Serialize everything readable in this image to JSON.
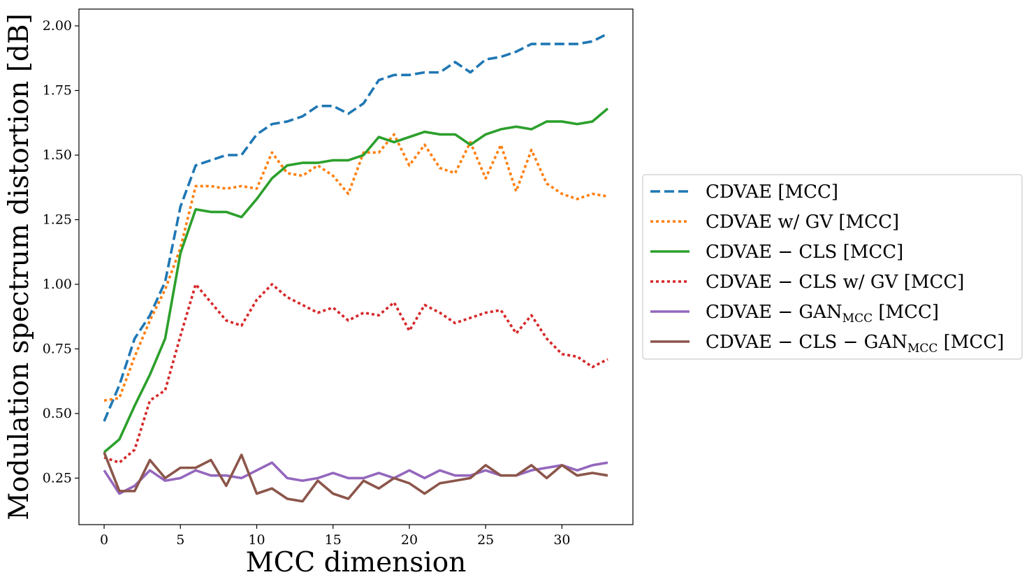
{
  "chart_data": {
    "type": "line",
    "xlabel": "MCC dimension",
    "ylabel": "Modulation spectrum distortion  [dB]",
    "xlim": [
      -1.65,
      34.65
    ],
    "ylim": [
      0.07,
      2.065
    ],
    "xticks": [
      0,
      5,
      10,
      15,
      20,
      25,
      30
    ],
    "yticks": [
      0.25,
      0.5,
      0.75,
      1.0,
      1.25,
      1.5,
      1.75,
      2.0
    ],
    "ytick_labels": [
      "0.25",
      "0.50",
      "0.75",
      "1.00",
      "1.25",
      "1.50",
      "1.75",
      "2.00"
    ],
    "grid": false,
    "legend_position": "outside-right",
    "x": [
      0,
      1,
      2,
      3,
      4,
      5,
      6,
      7,
      8,
      9,
      10,
      11,
      12,
      13,
      14,
      15,
      16,
      17,
      18,
      19,
      20,
      21,
      22,
      23,
      24,
      25,
      26,
      27,
      28,
      29,
      30,
      31,
      32,
      33
    ],
    "series": [
      {
        "name": "CDVAE [MCC]",
        "legend_parts": [
          {
            "text": "CDVAE [MCC]",
            "sub": false
          }
        ],
        "color": "#1f77b4",
        "dash": "dashed",
        "values": [
          0.47,
          0.61,
          0.79,
          0.88,
          1.01,
          1.3,
          1.46,
          1.48,
          1.5,
          1.5,
          1.58,
          1.62,
          1.63,
          1.65,
          1.69,
          1.69,
          1.66,
          1.7,
          1.79,
          1.81,
          1.81,
          1.82,
          1.82,
          1.86,
          1.82,
          1.87,
          1.88,
          1.9,
          1.93,
          1.93,
          1.93,
          1.93,
          1.94,
          1.97
        ]
      },
      {
        "name": "CDVAE w/ GV [MCC]",
        "legend_parts": [
          {
            "text": "CDVAE w/ GV [MCC]",
            "sub": false
          }
        ],
        "color": "#ff7f0e",
        "dash": "dotted",
        "values": [
          0.55,
          0.56,
          0.72,
          0.86,
          0.98,
          1.14,
          1.38,
          1.38,
          1.37,
          1.38,
          1.37,
          1.51,
          1.43,
          1.42,
          1.46,
          1.42,
          1.35,
          1.51,
          1.51,
          1.58,
          1.46,
          1.54,
          1.45,
          1.43,
          1.55,
          1.41,
          1.54,
          1.36,
          1.52,
          1.39,
          1.35,
          1.33,
          1.35,
          1.34
        ]
      },
      {
        "name": "CDVAE − CLS [MCC]",
        "legend_parts": [
          {
            "text": "CDVAE − CLS [MCC]",
            "sub": false
          }
        ],
        "color": "#2ca02c",
        "dash": "solid",
        "values": [
          0.35,
          0.4,
          0.53,
          0.65,
          0.79,
          1.12,
          1.29,
          1.28,
          1.28,
          1.26,
          1.33,
          1.41,
          1.46,
          1.47,
          1.47,
          1.48,
          1.48,
          1.5,
          1.57,
          1.55,
          1.57,
          1.59,
          1.58,
          1.58,
          1.54,
          1.58,
          1.6,
          1.61,
          1.6,
          1.63,
          1.63,
          1.62,
          1.63,
          1.68
        ]
      },
      {
        "name": "CDVAE − CLS w/ GV [MCC]",
        "legend_parts": [
          {
            "text": "CDVAE − CLS w/ GV [MCC]",
            "sub": false
          }
        ],
        "color": "#d62728",
        "dash": "dotted",
        "values": [
          0.33,
          0.31,
          0.36,
          0.55,
          0.59,
          0.8,
          1.0,
          0.93,
          0.86,
          0.84,
          0.94,
          1.0,
          0.95,
          0.92,
          0.89,
          0.91,
          0.86,
          0.89,
          0.88,
          0.93,
          0.82,
          0.92,
          0.89,
          0.85,
          0.87,
          0.89,
          0.9,
          0.81,
          0.88,
          0.79,
          0.73,
          0.72,
          0.68,
          0.71
        ]
      },
      {
        "name": "CDVAE − GAN MCC [MCC]",
        "legend_parts": [
          {
            "text": "CDVAE − GAN",
            "sub": false
          },
          {
            "text": "MCC",
            "sub": true
          },
          {
            "text": " [MCC]",
            "sub": false
          }
        ],
        "color": "#9467bd",
        "dash": "solid",
        "values": [
          0.28,
          0.19,
          0.22,
          0.28,
          0.24,
          0.25,
          0.28,
          0.26,
          0.26,
          0.25,
          0.28,
          0.31,
          0.25,
          0.24,
          0.25,
          0.27,
          0.25,
          0.25,
          0.27,
          0.25,
          0.28,
          0.25,
          0.28,
          0.26,
          0.26,
          0.28,
          0.26,
          0.26,
          0.28,
          0.29,
          0.3,
          0.28,
          0.3,
          0.31
        ]
      },
      {
        "name": "CDVAE − CLS − GAN MCC [MCC]",
        "legend_parts": [
          {
            "text": "CDVAE − CLS − GAN",
            "sub": false
          },
          {
            "text": "MCC",
            "sub": true
          },
          {
            "text": " [MCC]",
            "sub": false
          }
        ],
        "color": "#8c564b",
        "dash": "solid",
        "values": [
          0.35,
          0.2,
          0.2,
          0.32,
          0.25,
          0.29,
          0.29,
          0.32,
          0.22,
          0.34,
          0.19,
          0.21,
          0.17,
          0.16,
          0.24,
          0.19,
          0.17,
          0.24,
          0.21,
          0.25,
          0.23,
          0.19,
          0.23,
          0.24,
          0.25,
          0.3,
          0.26,
          0.26,
          0.3,
          0.25,
          0.3,
          0.26,
          0.27,
          0.26
        ]
      }
    ]
  }
}
